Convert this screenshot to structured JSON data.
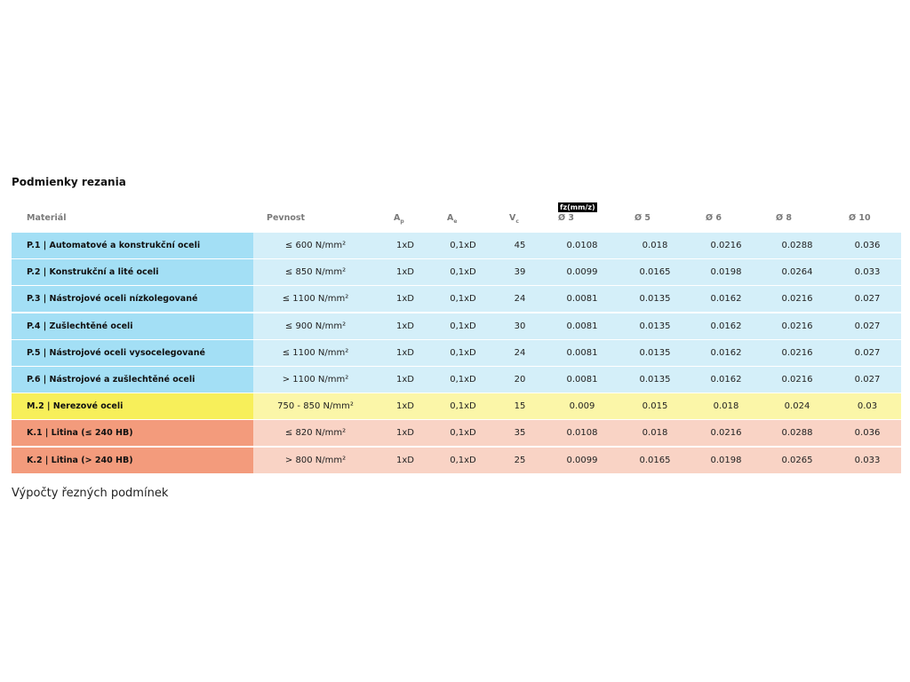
{
  "title": "Podmienky rezania",
  "table": {
    "badge": "fz(mm/z)",
    "header": [
      {
        "main": "Materiál"
      },
      {
        "main": "Pevnost"
      },
      {
        "main": "A",
        "sub": "p"
      },
      {
        "main": "A",
        "sub": "e"
      },
      {
        "main": "V",
        "sub": "c"
      },
      {
        "main": "Ø 3"
      },
      {
        "main": "Ø 5"
      },
      {
        "main": "Ø 6"
      },
      {
        "main": "Ø 8"
      },
      {
        "main": "Ø 10"
      }
    ],
    "rows": [
      {
        "color": "#a3dff5",
        "cell_color": "#d4eff9",
        "cells": [
          "P.1 | Automatové a konstrukční oceli",
          "≤ 600 N/mm²",
          "1xD",
          "0,1xD",
          "45",
          "0.0108",
          "0.018",
          "0.0216",
          "0.0288",
          "0.036"
        ]
      },
      {
        "color": "#a3dff5",
        "cell_color": "#d4eff9",
        "cells": [
          "P.2 | Konstrukční a lité oceli",
          "≤ 850 N/mm²",
          "1xD",
          "0,1xD",
          "39",
          "0.0099",
          "0.0165",
          "0.0198",
          "0.0264",
          "0.033"
        ]
      },
      {
        "color": "#a3dff5",
        "cell_color": "#d4eff9",
        "cells": [
          "P.3 | Nástrojové oceli nízkolegované",
          "≤ 1100 N/mm²",
          "1xD",
          "0,1xD",
          "24",
          "0.0081",
          "0.0135",
          "0.0162",
          "0.0216",
          "0.027"
        ]
      },
      {
        "color": "#a3dff5",
        "cell_color": "#d4eff9",
        "cells": [
          "P.4 | Zušlechtěné oceli",
          "≤ 900 N/mm²",
          "1xD",
          "0,1xD",
          "30",
          "0.0081",
          "0.0135",
          "0.0162",
          "0.0216",
          "0.027"
        ]
      },
      {
        "color": "#a3dff5",
        "cell_color": "#d4eff9",
        "cells": [
          "P.5 | Nástrojové oceli vysocelegované",
          "≤ 1100 N/mm²",
          "1xD",
          "0,1xD",
          "24",
          "0.0081",
          "0.0135",
          "0.0162",
          "0.0216",
          "0.027"
        ]
      },
      {
        "color": "#a3dff5",
        "cell_color": "#d4eff9",
        "cells": [
          "P.6 | Nástrojové a zušlechtěné oceli",
          "> 1100 N/mm²",
          "1xD",
          "0,1xD",
          "20",
          "0.0081",
          "0.0135",
          "0.0162",
          "0.0216",
          "0.027"
        ]
      },
      {
        "color": "#f7ef5a",
        "cell_color": "#fbf6a8",
        "cells": [
          "M.2 | Nerezové oceli",
          "750 - 850 N/mm²",
          "1xD",
          "0,1xD",
          "15",
          "0.009",
          "0.015",
          "0.018",
          "0.024",
          "0.03"
        ]
      },
      {
        "color": "#f39b7c",
        "cell_color": "#f9d3c5",
        "cells": [
          "K.1 | Litina (≤ 240 HB)",
          "≤ 820 N/mm²",
          "1xD",
          "0,1xD",
          "35",
          "0.0108",
          "0.018",
          "0.0216",
          "0.0288",
          "0.036"
        ]
      },
      {
        "color": "#f39b7c",
        "cell_color": "#f9d3c5",
        "cells": [
          "K.2 | Litina (> 240 HB)",
          "> 800 N/mm²",
          "1xD",
          "0,1xD",
          "25",
          "0.0099",
          "0.0165",
          "0.0198",
          "0.0265",
          "0.033"
        ]
      }
    ]
  },
  "caption": "Výpočty řezných podmínek"
}
